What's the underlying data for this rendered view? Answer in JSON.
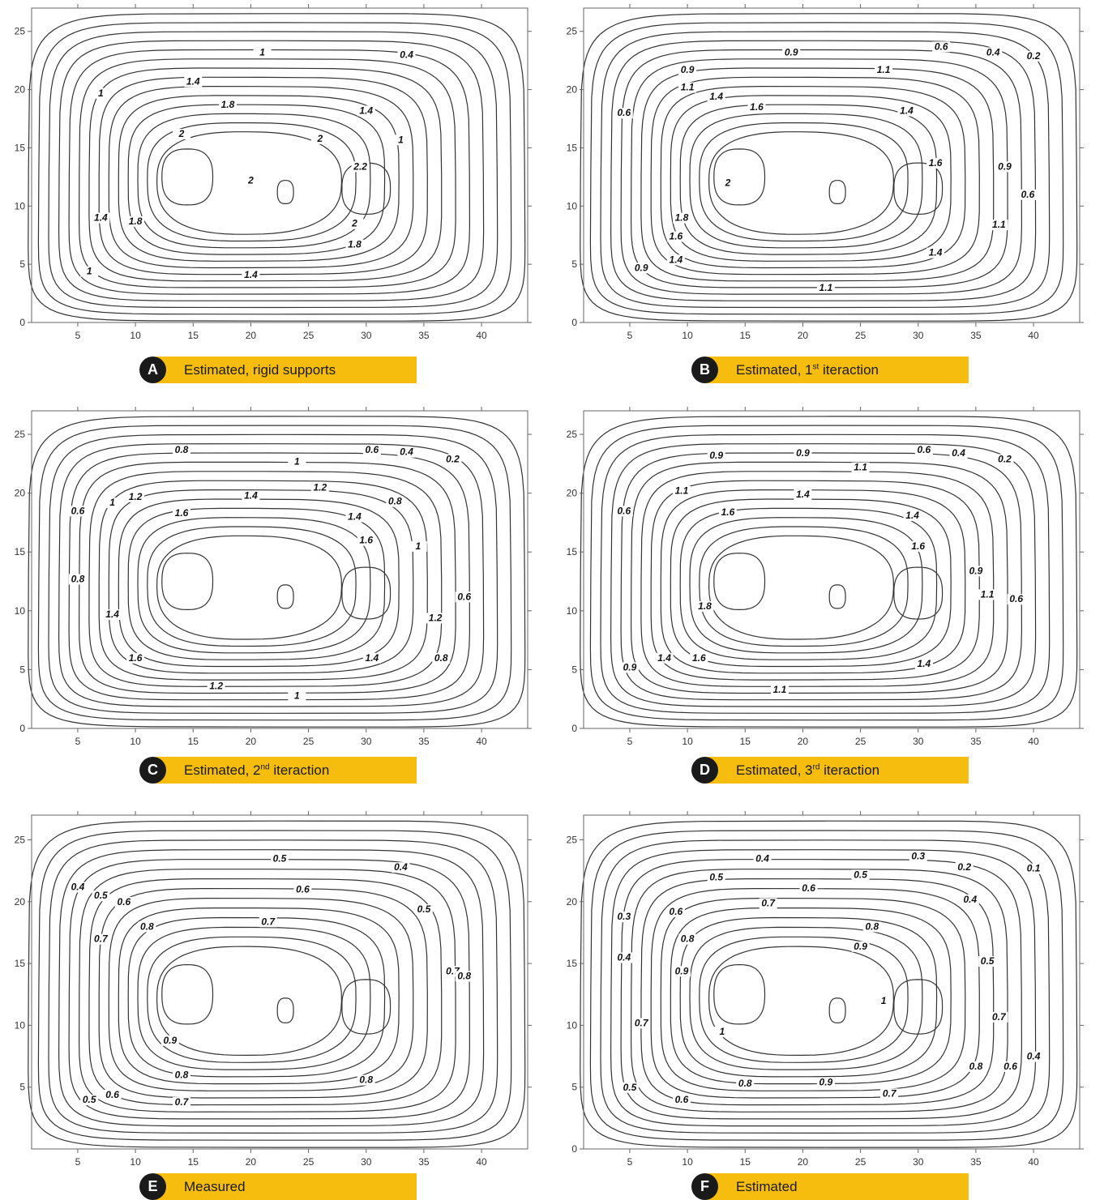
{
  "chart_data": [
    {
      "type": "contour",
      "panel_letter": "A",
      "caption": "Estimated, rigid supports",
      "caption_sup": "",
      "caption_suffix": "",
      "xlim": [
        1,
        44
      ],
      "ylim": [
        0,
        27
      ],
      "xticks": [
        5,
        10,
        15,
        20,
        25,
        30,
        35,
        40
      ],
      "yticks": [
        0,
        5,
        10,
        15,
        20,
        25
      ],
      "contour_levels": [
        0.4,
        1,
        1.4,
        1.8,
        2,
        2.2
      ],
      "contour_labels": [
        {
          "text": "1",
          "x": 21,
          "y": 23
        },
        {
          "text": "0.4",
          "x": 33.5,
          "y": 22.8
        },
        {
          "text": "1.4",
          "x": 15,
          "y": 20.5
        },
        {
          "text": "1",
          "x": 7,
          "y": 19.5
        },
        {
          "text": "1.8",
          "x": 18,
          "y": 18.5
        },
        {
          "text": "1.4",
          "x": 30,
          "y": 18
        },
        {
          "text": "2",
          "x": 14,
          "y": 16
        },
        {
          "text": "2",
          "x": 26,
          "y": 15.6
        },
        {
          "text": "1",
          "x": 33,
          "y": 15.5
        },
        {
          "text": "2.2",
          "x": 29.5,
          "y": 13.2
        },
        {
          "text": "2",
          "x": 20,
          "y": 12
        },
        {
          "text": "1.4",
          "x": 7,
          "y": 8.8
        },
        {
          "text": "1.8",
          "x": 10,
          "y": 8.5
        },
        {
          "text": "2",
          "x": 29,
          "y": 8.3
        },
        {
          "text": "1.8",
          "x": 29,
          "y": 6.5
        },
        {
          "text": "1",
          "x": 6,
          "y": 4.2
        },
        {
          "text": "1.4",
          "x": 20,
          "y": 3.9
        }
      ]
    },
    {
      "type": "contour",
      "panel_letter": "B",
      "caption": "Estimated, 1",
      "caption_sup": "st",
      "caption_suffix": " iteraction",
      "xlim": [
        1,
        44
      ],
      "ylim": [
        0,
        27
      ],
      "xticks": [
        5,
        10,
        15,
        20,
        25,
        30,
        35,
        40
      ],
      "yticks": [
        0,
        5,
        10,
        15,
        20,
        25
      ],
      "contour_levels": [
        0.2,
        0.4,
        0.6,
        0.9,
        1.1,
        1.4,
        1.6,
        1.8,
        2
      ],
      "contour_labels": [
        {
          "text": "0.6",
          "x": 32,
          "y": 23.5
        },
        {
          "text": "0.4",
          "x": 36.5,
          "y": 23
        },
        {
          "text": "0.2",
          "x": 40,
          "y": 22.7
        },
        {
          "text": "0.9",
          "x": 19,
          "y": 23
        },
        {
          "text": "0.9",
          "x": 10,
          "y": 21.5
        },
        {
          "text": "1.1",
          "x": 27,
          "y": 21.5
        },
        {
          "text": "1.1",
          "x": 10,
          "y": 20
        },
        {
          "text": "0.6",
          "x": 4.5,
          "y": 17.8
        },
        {
          "text": "1.4",
          "x": 12.5,
          "y": 19.2
        },
        {
          "text": "1.6",
          "x": 16,
          "y": 18.3
        },
        {
          "text": "1.4",
          "x": 29,
          "y": 18
        },
        {
          "text": "1.6",
          "x": 31.5,
          "y": 13.5
        },
        {
          "text": "0.9",
          "x": 37.5,
          "y": 13.2
        },
        {
          "text": "2",
          "x": 13.5,
          "y": 11.8
        },
        {
          "text": "0.6",
          "x": 39.5,
          "y": 10.8
        },
        {
          "text": "1.8",
          "x": 9.5,
          "y": 8.8
        },
        {
          "text": "1.1",
          "x": 37,
          "y": 8.2
        },
        {
          "text": "1.6",
          "x": 9,
          "y": 7.2
        },
        {
          "text": "1.4",
          "x": 31.5,
          "y": 5.8
        },
        {
          "text": "1.4",
          "x": 9,
          "y": 5.2
        },
        {
          "text": "0.9",
          "x": 6,
          "y": 4.5
        },
        {
          "text": "1.1",
          "x": 22,
          "y": 2.8
        }
      ]
    },
    {
      "type": "contour",
      "panel_letter": "C",
      "caption": "Estimated, 2",
      "caption_sup": "nd",
      "caption_suffix": " iteraction",
      "xlim": [
        1,
        44
      ],
      "ylim": [
        0,
        27
      ],
      "xticks": [
        5,
        10,
        15,
        20,
        25,
        30,
        35,
        40
      ],
      "yticks": [
        0,
        5,
        10,
        15,
        20,
        25
      ],
      "contour_levels": [
        0.2,
        0.4,
        0.6,
        0.8,
        1,
        1.2,
        1.4,
        1.6
      ],
      "contour_labels": [
        {
          "text": "0.8",
          "x": 14,
          "y": 23.5
        },
        {
          "text": "0.6",
          "x": 30.5,
          "y": 23.5
        },
        {
          "text": "0.4",
          "x": 33.5,
          "y": 23.3
        },
        {
          "text": "0.2",
          "x": 37.5,
          "y": 22.7
        },
        {
          "text": "1",
          "x": 24,
          "y": 22.5
        },
        {
          "text": "1.2",
          "x": 10,
          "y": 19.5
        },
        {
          "text": "1.2",
          "x": 26,
          "y": 20.3
        },
        {
          "text": "1",
          "x": 8,
          "y": 19
        },
        {
          "text": "1.4",
          "x": 20,
          "y": 19.6
        },
        {
          "text": "0.8",
          "x": 32.5,
          "y": 19.1
        },
        {
          "text": "0.6",
          "x": 5,
          "y": 18.3
        },
        {
          "text": "1.6",
          "x": 14,
          "y": 18.1
        },
        {
          "text": "1.4",
          "x": 29,
          "y": 17.8
        },
        {
          "text": "1",
          "x": 34.5,
          "y": 15.3
        },
        {
          "text": "1.6",
          "x": 30,
          "y": 15.8
        },
        {
          "text": "0.8",
          "x": 5,
          "y": 12.5
        },
        {
          "text": "0.6",
          "x": 38.5,
          "y": 11
        },
        {
          "text": "1.2",
          "x": 36,
          "y": 9.2
        },
        {
          "text": "1.4",
          "x": 8,
          "y": 9.5
        },
        {
          "text": "1.6",
          "x": 10,
          "y": 5.8
        },
        {
          "text": "1.4",
          "x": 30.5,
          "y": 5.8
        },
        {
          "text": "0.8",
          "x": 36.5,
          "y": 5.8
        },
        {
          "text": "1.2",
          "x": 17,
          "y": 3.4
        },
        {
          "text": "1",
          "x": 24,
          "y": 2.6
        }
      ]
    },
    {
      "type": "contour",
      "panel_letter": "D",
      "caption": "Estimated, 3",
      "caption_sup": "rd",
      "caption_suffix": " iteraction",
      "xlim": [
        1,
        44
      ],
      "ylim": [
        0,
        27
      ],
      "xticks": [
        5,
        10,
        15,
        20,
        25,
        30,
        35,
        40
      ],
      "yticks": [
        0,
        5,
        10,
        15,
        20,
        25
      ],
      "contour_levels": [
        0.2,
        0.4,
        0.6,
        0.9,
        1.1,
        1.4,
        1.6,
        1.8
      ],
      "contour_labels": [
        {
          "text": "0.9",
          "x": 12.5,
          "y": 23
        },
        {
          "text": "0.9",
          "x": 20,
          "y": 23.2
        },
        {
          "text": "0.6",
          "x": 30.5,
          "y": 23.5
        },
        {
          "text": "0.4",
          "x": 33.5,
          "y": 23.2
        },
        {
          "text": "0.2",
          "x": 37.5,
          "y": 22.7
        },
        {
          "text": "1.1",
          "x": 25,
          "y": 22
        },
        {
          "text": "1.1",
          "x": 9.5,
          "y": 20
        },
        {
          "text": "1.4",
          "x": 20,
          "y": 19.7
        },
        {
          "text": "0.6",
          "x": 4.5,
          "y": 18.3
        },
        {
          "text": "1.6",
          "x": 13.5,
          "y": 18.2
        },
        {
          "text": "1.4",
          "x": 29.5,
          "y": 17.9
        },
        {
          "text": "1.6",
          "x": 30,
          "y": 15.3
        },
        {
          "text": "0.9",
          "x": 35,
          "y": 13.2
        },
        {
          "text": "1.1",
          "x": 36,
          "y": 11.2
        },
        {
          "text": "0.6",
          "x": 38.5,
          "y": 10.8
        },
        {
          "text": "1.8",
          "x": 11.5,
          "y": 10.2
        },
        {
          "text": "1.4",
          "x": 8,
          "y": 5.8
        },
        {
          "text": "1.6",
          "x": 11,
          "y": 5.8
        },
        {
          "text": "1.4",
          "x": 30.5,
          "y": 5.3
        },
        {
          "text": "0.9",
          "x": 5,
          "y": 5
        },
        {
          "text": "1.1",
          "x": 18,
          "y": 3.1
        }
      ]
    },
    {
      "type": "contour",
      "panel_letter": "E",
      "caption": "Measured",
      "caption_sup": "",
      "caption_suffix": "",
      "xlim": [
        1,
        44
      ],
      "ylim": [
        0,
        27
      ],
      "xticks": [
        5,
        10,
        15,
        20,
        25,
        30,
        35,
        40
      ],
      "yticks": [
        5,
        10,
        15,
        20,
        25
      ],
      "contour_levels": [
        0.4,
        0.5,
        0.6,
        0.7,
        0.8,
        0.9
      ],
      "contour_labels": [
        {
          "text": "0.5",
          "x": 22.5,
          "y": 23.3
        },
        {
          "text": "0.4",
          "x": 33,
          "y": 22.6
        },
        {
          "text": "0.6",
          "x": 24.5,
          "y": 20.8
        },
        {
          "text": "0.4",
          "x": 5,
          "y": 21
        },
        {
          "text": "0.5",
          "x": 7,
          "y": 20.3
        },
        {
          "text": "0.6",
          "x": 9,
          "y": 19.8
        },
        {
          "text": "0.7",
          "x": 21.5,
          "y": 18.2
        },
        {
          "text": "0.5",
          "x": 35,
          "y": 19.2
        },
        {
          "text": "0.7",
          "x": 7,
          "y": 16.8
        },
        {
          "text": "0.8",
          "x": 11,
          "y": 17.8
        },
        {
          "text": "0.7",
          "x": 37.5,
          "y": 14.2
        },
        {
          "text": "0.8",
          "x": 38.5,
          "y": 13.8
        },
        {
          "text": "0.9",
          "x": 13,
          "y": 8.6
        },
        {
          "text": "0.8",
          "x": 14,
          "y": 5.8
        },
        {
          "text": "0.8",
          "x": 30,
          "y": 5.4
        },
        {
          "text": "0.6",
          "x": 8,
          "y": 4.2
        },
        {
          "text": "0.5",
          "x": 6,
          "y": 3.8
        },
        {
          "text": "0.7",
          "x": 14,
          "y": 3.6
        }
      ]
    },
    {
      "type": "contour",
      "panel_letter": "F",
      "caption": "Estimated",
      "caption_sup": "",
      "caption_suffix": "",
      "xlim": [
        1,
        44
      ],
      "ylim": [
        0,
        27
      ],
      "xticks": [
        5,
        10,
        15,
        20,
        25,
        30,
        35,
        40
      ],
      "yticks": [
        0,
        5,
        10,
        15,
        20,
        25
      ],
      "contour_levels": [
        0.1,
        0.2,
        0.3,
        0.4,
        0.5,
        0.6,
        0.7,
        0.8,
        0.9,
        1
      ],
      "contour_labels": [
        {
          "text": "0.4",
          "x": 16.5,
          "y": 23.3
        },
        {
          "text": "0.3",
          "x": 30,
          "y": 23.5
        },
        {
          "text": "0.2",
          "x": 34,
          "y": 22.6
        },
        {
          "text": "0.1",
          "x": 40,
          "y": 22.5
        },
        {
          "text": "0.5",
          "x": 12.5,
          "y": 21.8
        },
        {
          "text": "0.5",
          "x": 25,
          "y": 22
        },
        {
          "text": "0.6",
          "x": 20.5,
          "y": 20.9
        },
        {
          "text": "0.4",
          "x": 34.5,
          "y": 20
        },
        {
          "text": "0.7",
          "x": 17,
          "y": 19.7
        },
        {
          "text": "0.6",
          "x": 9,
          "y": 19
        },
        {
          "text": "0.3",
          "x": 4.5,
          "y": 18.6
        },
        {
          "text": "0.8",
          "x": 26,
          "y": 17.8
        },
        {
          "text": "0.8",
          "x": 10,
          "y": 16.8
        },
        {
          "text": "0.9",
          "x": 25,
          "y": 16.2
        },
        {
          "text": "0.4",
          "x": 4.5,
          "y": 15.3
        },
        {
          "text": "0.5",
          "x": 36,
          "y": 15
        },
        {
          "text": "0.9",
          "x": 9.5,
          "y": 14.2
        },
        {
          "text": "1",
          "x": 27,
          "y": 11.8
        },
        {
          "text": "0.7",
          "x": 37,
          "y": 10.5
        },
        {
          "text": "0.7",
          "x": 6,
          "y": 10
        },
        {
          "text": "1",
          "x": 13,
          "y": 9.3
        },
        {
          "text": "0.4",
          "x": 40,
          "y": 7.3
        },
        {
          "text": "0.6",
          "x": 38,
          "y": 6.5
        },
        {
          "text": "0.8",
          "x": 35,
          "y": 6.5
        },
        {
          "text": "0.9",
          "x": 22,
          "y": 5.2
        },
        {
          "text": "0.8",
          "x": 15,
          "y": 5.1
        },
        {
          "text": "0.5",
          "x": 5,
          "y": 4.8
        },
        {
          "text": "0.7",
          "x": 27.5,
          "y": 4.3
        },
        {
          "text": "0.6",
          "x": 9.5,
          "y": 3.8
        }
      ]
    }
  ],
  "icons": {
    "contour_style": "labelled-isolines",
    "line_color": "#333333"
  },
  "colors": {
    "caption_bar": "#f7bd0e",
    "caption_circle": "#1a1a1a",
    "caption_text": "#1a1a1a"
  }
}
